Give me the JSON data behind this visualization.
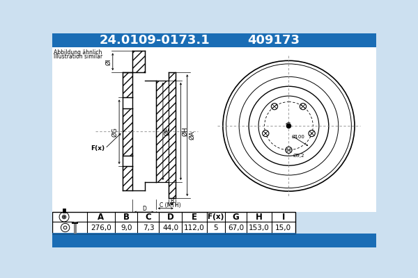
{
  "title_part": "24.0109-0173.1",
  "title_code": "409173",
  "title_bg": "#1a6db5",
  "subtitle_line1": "Abbildung ähnlich",
  "subtitle_line2": "Illustration similar",
  "table_headers": [
    "A",
    "B",
    "C",
    "D",
    "E",
    "F(x)",
    "G",
    "H",
    "I"
  ],
  "table_values": [
    "276,0",
    "9,0",
    "7,3",
    "44,0",
    "112,0",
    "5",
    "67,0",
    "153,0",
    "15,0"
  ],
  "bg_color": "#cce0f0",
  "line_color": "#000000",
  "dim_color": "#000000"
}
